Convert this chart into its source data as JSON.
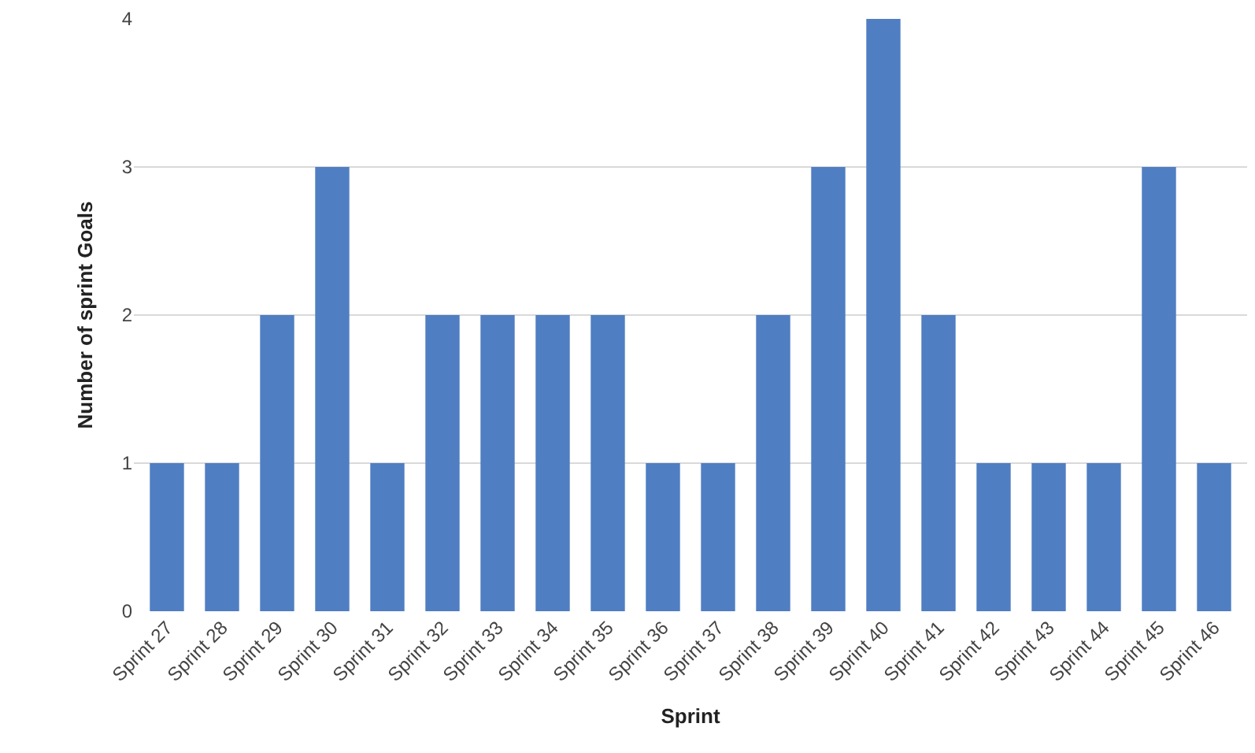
{
  "chart_data": {
    "type": "bar",
    "xlabel": "Sprint",
    "ylabel": "Number of sprint Goals",
    "categories": [
      "Sprint 27",
      "Sprint 28",
      "Sprint 29",
      "Sprint 30",
      "Sprint 31",
      "Sprint 32",
      "Sprint 33",
      "Sprint 34",
      "Sprint 35",
      "Sprint 36",
      "Sprint 37",
      "Sprint 38",
      "Sprint 39",
      "Sprint 40",
      "Sprint 41",
      "Sprint 42",
      "Sprint 43",
      "Sprint 44",
      "Sprint 45",
      "Sprint 46"
    ],
    "values": [
      1,
      1,
      2,
      3,
      1,
      2,
      2,
      2,
      2,
      1,
      1,
      2,
      3,
      4,
      2,
      1,
      1,
      1,
      3,
      1
    ],
    "color": "#4f7ec2",
    "ylim": [
      0,
      4
    ],
    "yticks": [
      0,
      1,
      2,
      3,
      4
    ],
    "grid": "y"
  }
}
